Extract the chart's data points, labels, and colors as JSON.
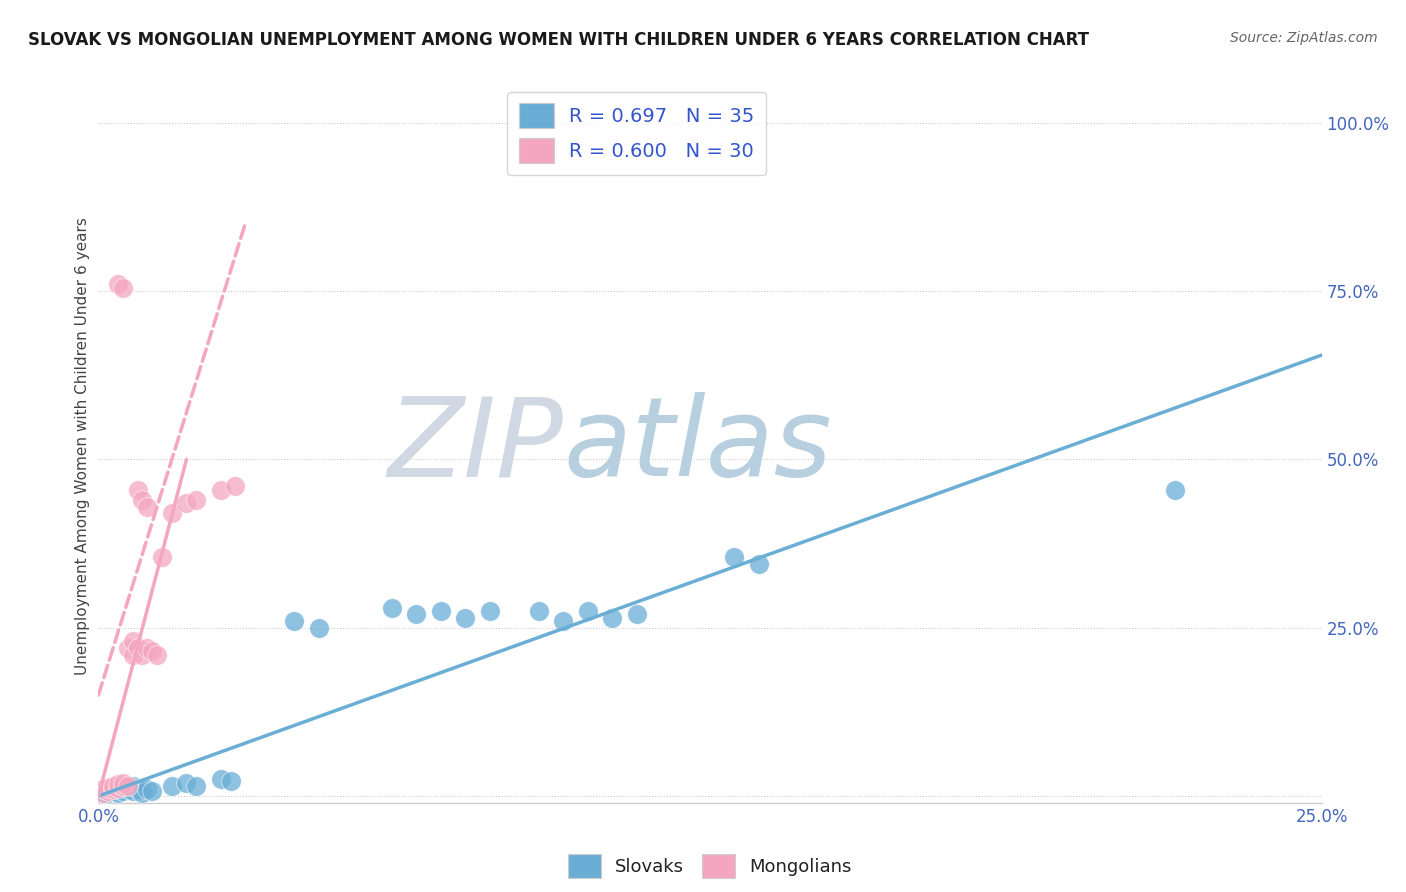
{
  "title": "SLOVAK VS MONGOLIAN UNEMPLOYMENT AMONG WOMEN WITH CHILDREN UNDER 6 YEARS CORRELATION CHART",
  "source": "Source: ZipAtlas.com",
  "ylabel": "Unemployment Among Women with Children Under 6 years",
  "xlim": [
    0.0,
    0.25
  ],
  "ylim": [
    -0.01,
    1.05
  ],
  "xticks": [
    0.0,
    0.05,
    0.1,
    0.15,
    0.2,
    0.25
  ],
  "yticks": [
    0.0,
    0.25,
    0.5,
    0.75,
    1.0
  ],
  "xtick_labels": [
    "0.0%",
    "",
    "",
    "",
    "",
    "25.0%"
  ],
  "ytick_labels": [
    "",
    "25.0%",
    "50.0%",
    "75.0%",
    "100.0%"
  ],
  "blue_color": "#6aaed6",
  "pink_color": "#f4a6c0",
  "blue_scatter": [
    [
      0.001,
      0.005
    ],
    [
      0.002,
      0.005
    ],
    [
      0.002,
      0.01
    ],
    [
      0.003,
      0.008
    ],
    [
      0.004,
      0.005
    ],
    [
      0.004,
      0.01
    ],
    [
      0.005,
      0.008
    ],
    [
      0.005,
      0.015
    ],
    [
      0.006,
      0.01
    ],
    [
      0.007,
      0.008
    ],
    [
      0.007,
      0.015
    ],
    [
      0.008,
      0.01
    ],
    [
      0.009,
      0.005
    ],
    [
      0.01,
      0.01
    ],
    [
      0.011,
      0.008
    ],
    [
      0.015,
      0.015
    ],
    [
      0.018,
      0.02
    ],
    [
      0.02,
      0.015
    ],
    [
      0.025,
      0.025
    ],
    [
      0.027,
      0.022
    ],
    [
      0.04,
      0.26
    ],
    [
      0.045,
      0.25
    ],
    [
      0.06,
      0.28
    ],
    [
      0.065,
      0.27
    ],
    [
      0.07,
      0.275
    ],
    [
      0.075,
      0.265
    ],
    [
      0.08,
      0.275
    ],
    [
      0.09,
      0.275
    ],
    [
      0.095,
      0.26
    ],
    [
      0.1,
      0.275
    ],
    [
      0.105,
      0.265
    ],
    [
      0.11,
      0.27
    ],
    [
      0.13,
      0.355
    ],
    [
      0.135,
      0.345
    ],
    [
      0.22,
      0.455
    ]
  ],
  "pink_scatter": [
    [
      0.001,
      0.005
    ],
    [
      0.001,
      0.01
    ],
    [
      0.002,
      0.008
    ],
    [
      0.002,
      0.012
    ],
    [
      0.003,
      0.01
    ],
    [
      0.003,
      0.015
    ],
    [
      0.004,
      0.012
    ],
    [
      0.004,
      0.018
    ],
    [
      0.005,
      0.015
    ],
    [
      0.005,
      0.02
    ],
    [
      0.006,
      0.015
    ],
    [
      0.006,
      0.22
    ],
    [
      0.007,
      0.21
    ],
    [
      0.007,
      0.23
    ],
    [
      0.008,
      0.22
    ],
    [
      0.009,
      0.21
    ],
    [
      0.01,
      0.22
    ],
    [
      0.011,
      0.215
    ],
    [
      0.012,
      0.21
    ],
    [
      0.013,
      0.355
    ],
    [
      0.015,
      0.42
    ],
    [
      0.018,
      0.435
    ],
    [
      0.02,
      0.44
    ],
    [
      0.025,
      0.455
    ],
    [
      0.028,
      0.46
    ],
    [
      0.004,
      0.76
    ],
    [
      0.005,
      0.755
    ],
    [
      0.008,
      0.455
    ],
    [
      0.009,
      0.44
    ],
    [
      0.01,
      0.43
    ]
  ],
  "blue_line_x": [
    0.0,
    0.25
  ],
  "blue_line_y": [
    0.0,
    0.655
  ],
  "pink_line_x": [
    0.0,
    0.03
  ],
  "pink_line_y": [
    0.15,
    0.85
  ],
  "pink_line2_x": [
    0.0,
    0.03
  ],
  "pink_line2_y": [
    0.15,
    0.85
  ],
  "watermark_zip": "ZIP",
  "watermark_atlas": "atlas",
  "watermark_zip_color": "#d0d8e4",
  "watermark_atlas_color": "#b8cfe0",
  "legend_blue_label": "R = 0.697   N = 35",
  "legend_pink_label": "R = 0.600   N = 30",
  "legend_slovaks": "Slovaks",
  "legend_mongolians": "Mongolians",
  "background_color": "#FFFFFF",
  "title_fontsize": 12,
  "source_fontsize": 10
}
